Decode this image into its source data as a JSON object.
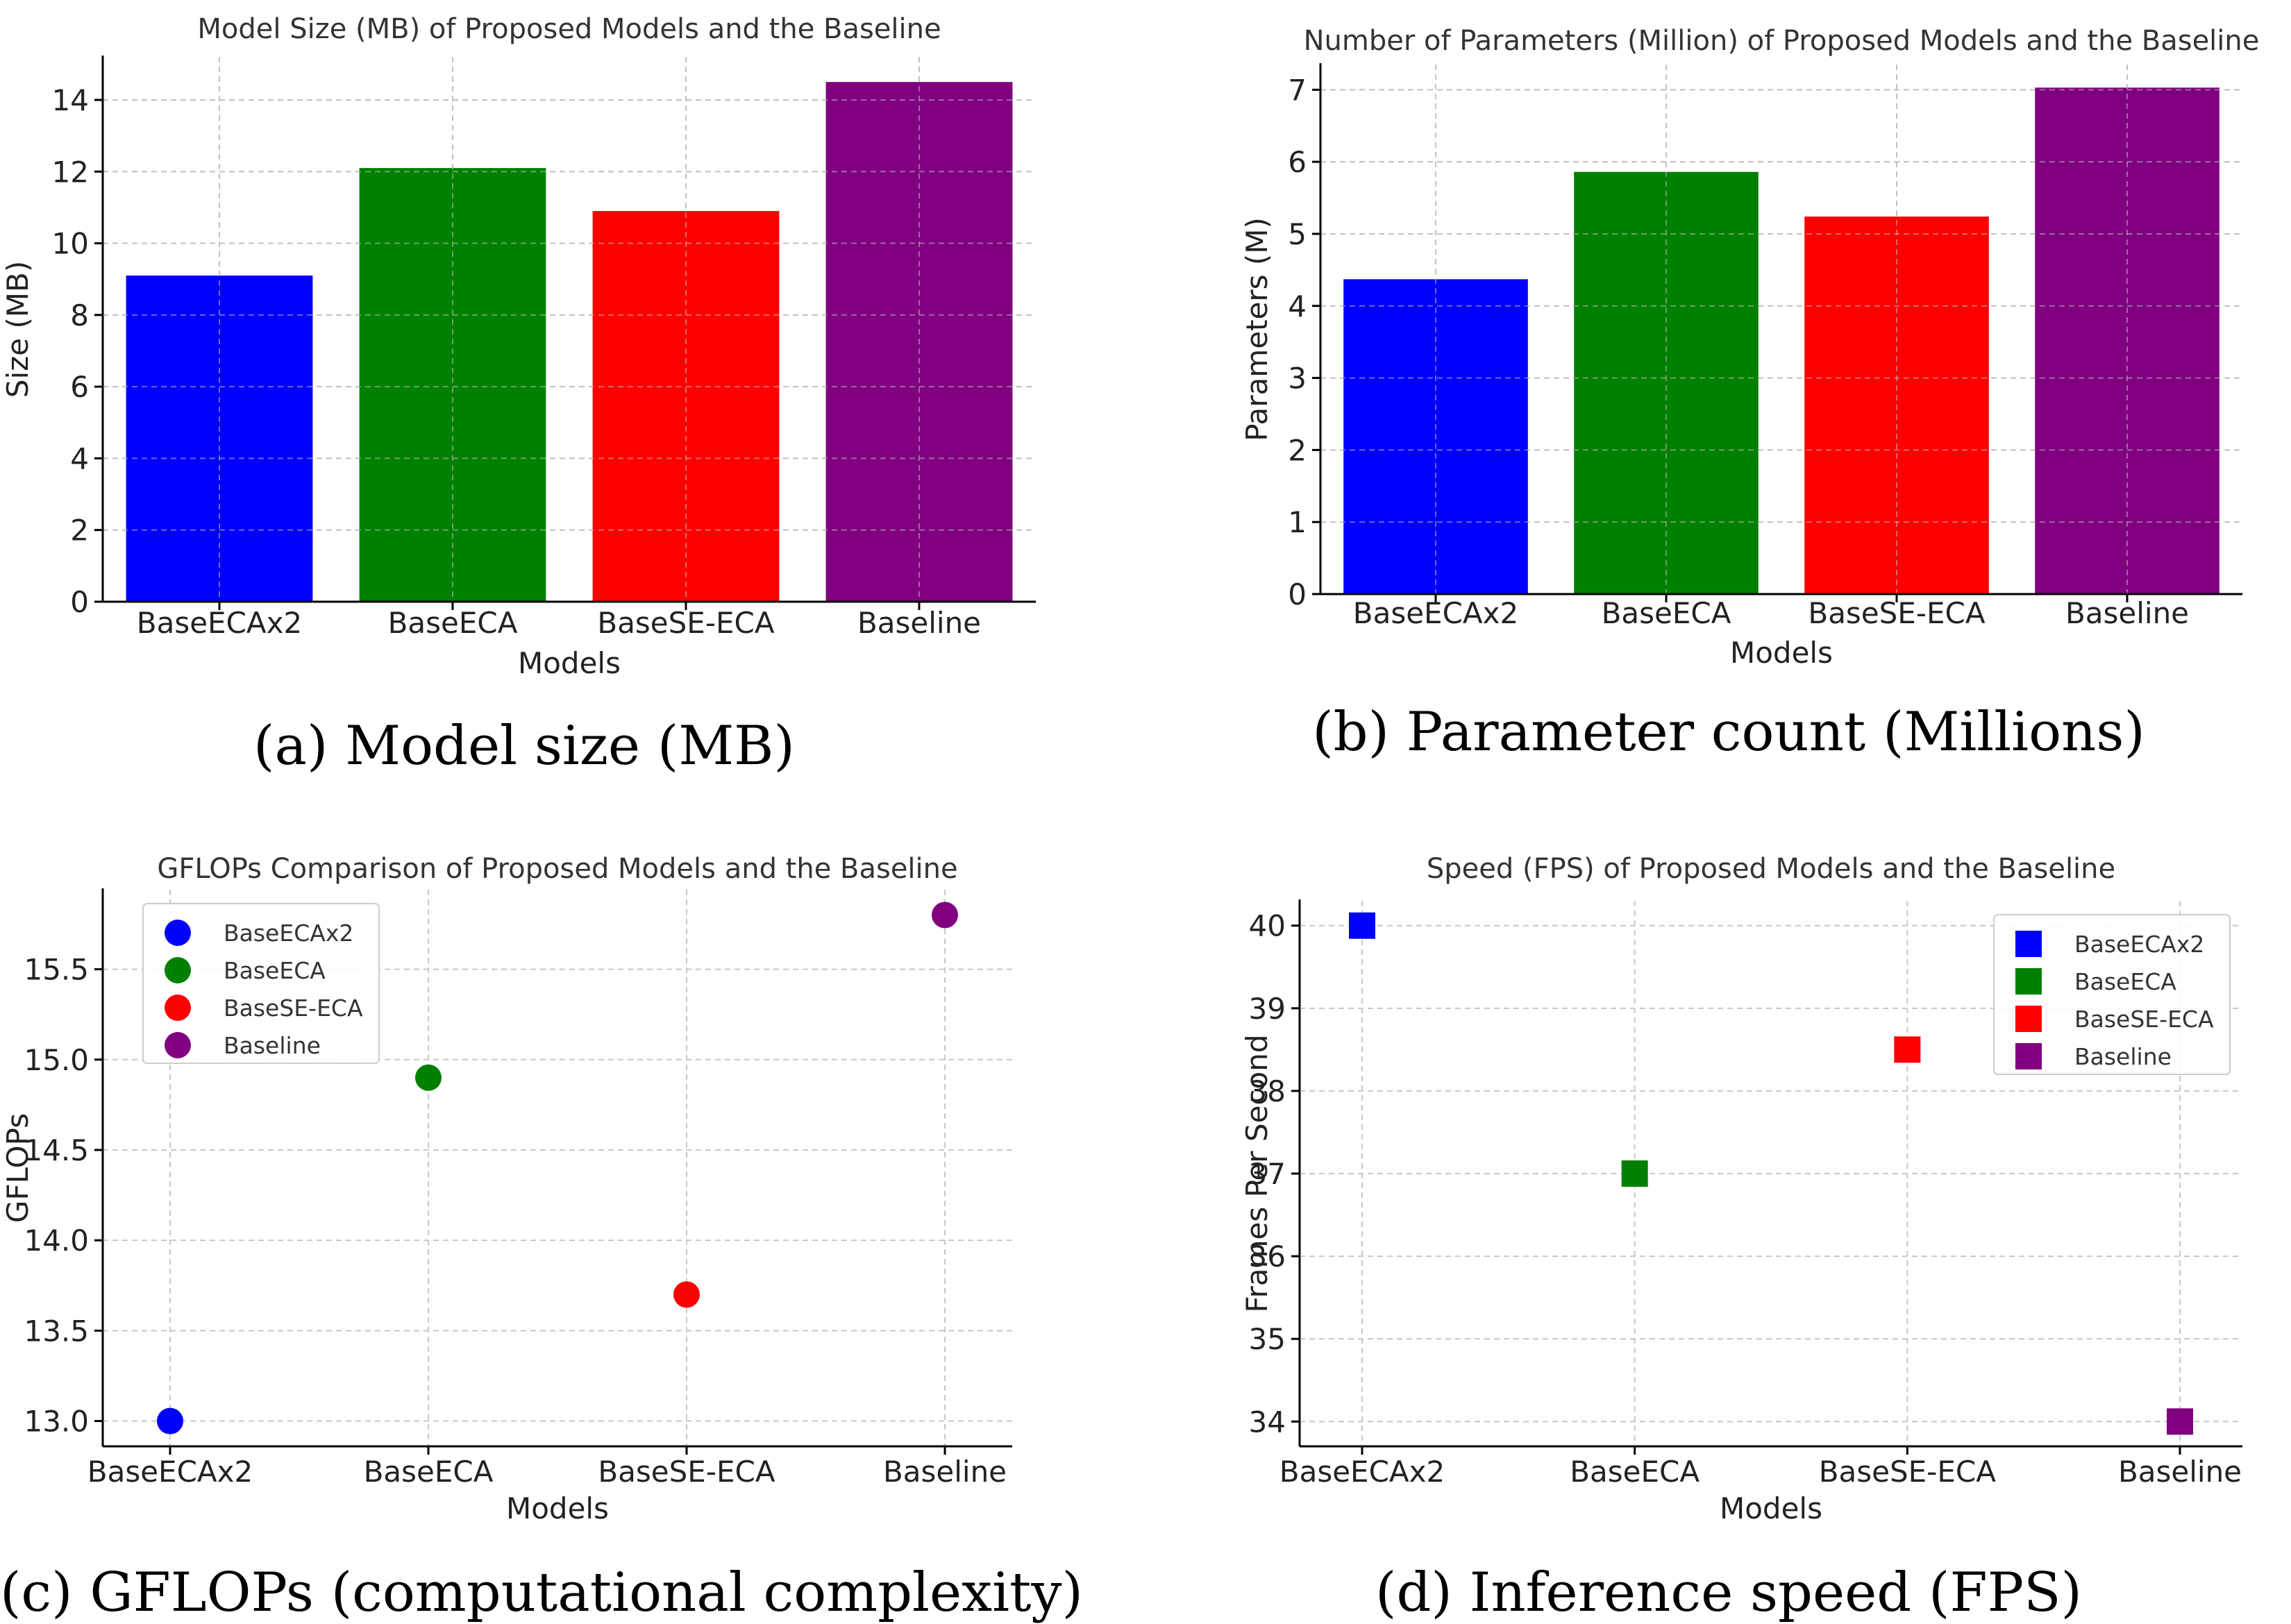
{
  "chart_data": [
    {
      "id": "a",
      "type": "bar",
      "title": "Model Size (MB) of Proposed Models and the Baseline",
      "xlabel": "Models",
      "ylabel": "Size (MB)",
      "categories": [
        "BaseECAx2",
        "BaseECA",
        "BaseSE-ECA",
        "Baseline"
      ],
      "values": [
        9.1,
        12.1,
        10.9,
        14.5
      ],
      "colors": [
        "#0000ff",
        "#008000",
        "#ff0000",
        "#800080"
      ],
      "ylim": [
        0,
        15.2
      ],
      "yticks": [
        0,
        2,
        4,
        6,
        8,
        10,
        12,
        14
      ],
      "grid": true,
      "caption": "(a) Model size (MB)"
    },
    {
      "id": "b",
      "type": "bar",
      "title": "Number of Parameters (Million) of Proposed Models and the Baseline",
      "xlabel": "Models",
      "ylabel": "Parameters (M)",
      "categories": [
        "BaseECAx2",
        "BaseECA",
        "BaseSE-ECA",
        "Baseline"
      ],
      "values": [
        4.37,
        5.86,
        5.24,
        7.03
      ],
      "colors": [
        "#0000ff",
        "#008000",
        "#ff0000",
        "#800080"
      ],
      "ylim": [
        0,
        7.35
      ],
      "yticks": [
        0,
        1,
        2,
        3,
        4,
        5,
        6,
        7
      ],
      "grid": true,
      "caption": "(b) Parameter count (Millions)"
    },
    {
      "id": "c",
      "type": "scatter",
      "marker": "circle",
      "title": "GFLOPs Comparison of Proposed Models and the Baseline",
      "xlabel": "Models",
      "ylabel": "GFLOPs",
      "categories": [
        "BaseECAx2",
        "BaseECA",
        "BaseSE-ECA",
        "Baseline"
      ],
      "values": [
        13.0,
        14.9,
        13.7,
        15.8
      ],
      "colors": [
        "#0000ff",
        "#008000",
        "#ff0000",
        "#800080"
      ],
      "ylim": [
        12.86,
        15.94
      ],
      "yticks": [
        13.0,
        13.5,
        14.0,
        14.5,
        15.0,
        15.5
      ],
      "ytick_labels": [
        "13.0",
        "13.5",
        "14.0",
        "14.5",
        "15.0",
        "15.5"
      ],
      "grid": true,
      "legend": [
        "BaseECAx2",
        "BaseECA",
        "BaseSE-ECA",
        "Baseline"
      ],
      "legend_position": "top-left",
      "caption": "(c) GFLOPs (computational complexity)"
    },
    {
      "id": "d",
      "type": "scatter",
      "marker": "square",
      "title": "Speed (FPS) of Proposed Models and the Baseline",
      "xlabel": "Models",
      "ylabel": "Frames Per Second",
      "categories": [
        "BaseECAx2",
        "BaseECA",
        "BaseSE-ECA",
        "Baseline"
      ],
      "values": [
        40,
        37,
        38.5,
        34
      ],
      "colors": [
        "#0000ff",
        "#008000",
        "#ff0000",
        "#800080"
      ],
      "ylim": [
        33.7,
        40.3
      ],
      "yticks": [
        34,
        35,
        36,
        37,
        38,
        39,
        40
      ],
      "grid": true,
      "legend": [
        "BaseECAx2",
        "BaseECA",
        "BaseSE-ECA",
        "Baseline"
      ],
      "legend_position": "top-right",
      "caption": "(d) Inference speed (FPS)"
    }
  ]
}
